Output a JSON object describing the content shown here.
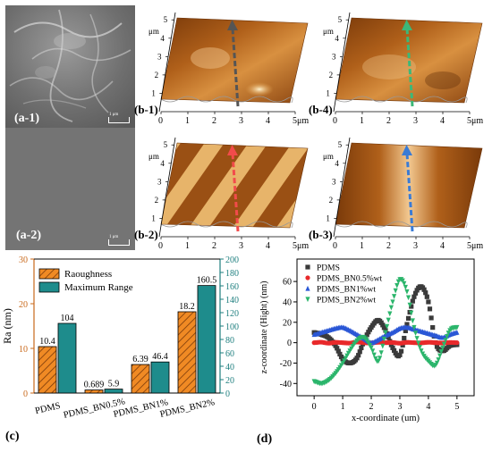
{
  "sem": {
    "a1": {
      "label": "(a-1)",
      "scale": "1 μm"
    },
    "a2": {
      "label": "(a-2)",
      "scale": "1 μm"
    }
  },
  "afm": {
    "unit": "μm",
    "x_ticks": [
      "0",
      "1",
      "2",
      "3",
      "4",
      "5μm"
    ],
    "y_ticks": [
      "1",
      "2",
      "3",
      "4",
      "5"
    ],
    "panels": [
      {
        "label": "(b-1)",
        "arrow_color": "#555555"
      },
      {
        "label": "(b-4)",
        "arrow_color": "#3cb878"
      },
      {
        "label": "(b-2)",
        "arrow_color": "#f24b4b"
      },
      {
        "label": "(b-3)",
        "arrow_color": "#3a7bd5"
      }
    ]
  },
  "panel_labels": {
    "c": "(c)",
    "d": "(d)"
  },
  "chart_data": [
    {
      "type": "bar",
      "categories": [
        "PDMS",
        "PDMS_BN0.5%",
        "PDMS_BN1%",
        "PDMS_BN2%"
      ],
      "series": [
        {
          "name": "Raoughness",
          "values": [
            10.4,
            0.689,
            6.39,
            18.2
          ],
          "labels": [
            "10.4",
            "0.689",
            "6.39",
            "18.2"
          ],
          "axis": "left"
        },
        {
          "name": "Maximum Range",
          "values": [
            104,
            5.9,
            46.4,
            160.5
          ],
          "labels": [
            "104",
            "5.9",
            "46.4",
            "160.5"
          ],
          "axis": "right"
        }
      ],
      "ylabel": "Ra (nm)",
      "ylim": [
        0,
        30
      ],
      "y_ticks": [
        "0",
        "10",
        "20",
        "30"
      ],
      "y2lim": [
        0,
        200
      ],
      "y2_ticks": [
        "0",
        "20",
        "40",
        "60",
        "80",
        "100",
        "120",
        "140",
        "160",
        "180",
        "200"
      ],
      "legend": "top-left",
      "colors": {
        "bar1": "#f08a24",
        "bar2": "#1e8c8c",
        "left_axis": "#c8681a",
        "right_axis": "#1e7f7f"
      }
    },
    {
      "type": "scatter",
      "xlabel": "x-coordinate (um)",
      "ylabel": "z-coordinate (Hight) (nm)",
      "xlim": [
        -0.6,
        5.6
      ],
      "ylim": [
        -52,
        82
      ],
      "x_ticks": [
        "0",
        "1",
        "2",
        "3",
        "4",
        "5"
      ],
      "y_ticks": [
        "-40",
        "-20",
        "0",
        "20",
        "40",
        "60"
      ],
      "legend": "top-left",
      "series": [
        {
          "name": "PDMS",
          "color": "#3a3a3a",
          "marker": "square",
          "x": [
            0,
            0.25,
            0.5,
            0.75,
            1,
            1.25,
            1.5,
            1.75,
            2,
            2.25,
            2.5,
            2.75,
            3,
            3.25,
            3.5,
            3.75,
            4,
            4.25,
            4.5,
            4.75,
            5
          ],
          "y": [
            10,
            8,
            5,
            -3,
            -16,
            -20,
            -15,
            2,
            15,
            22,
            12,
            -5,
            -12,
            18,
            45,
            55,
            40,
            0,
            -8,
            -3,
            -2
          ]
        },
        {
          "name": "PDMS_BN0.5%wt",
          "color": "#e8292b",
          "marker": "circle",
          "x": [
            0,
            0.25,
            0.5,
            0.75,
            1,
            1.25,
            1.5,
            1.75,
            2,
            2.25,
            2.5,
            2.75,
            3,
            3.25,
            3.5,
            3.75,
            4,
            4.25,
            4.5,
            4.75,
            5
          ],
          "y": [
            0,
            0.5,
            -0.5,
            0.3,
            0,
            -0.4,
            0.6,
            0,
            -0.3,
            0.4,
            0,
            0.2,
            -0.5,
            0.3,
            0,
            -0.2,
            0.4,
            0,
            -0.3,
            0.2,
            0
          ]
        },
        {
          "name": "PDMS_BN1%wt",
          "color": "#2a57d6",
          "marker": "triangle-up",
          "x": [
            0,
            0.25,
            0.5,
            0.75,
            1,
            1.25,
            1.5,
            1.75,
            2,
            2.25,
            2.5,
            2.75,
            3,
            3.25,
            3.5,
            3.75,
            4,
            4.25,
            4.5,
            4.75,
            5
          ],
          "y": [
            8,
            10,
            12,
            14,
            15,
            12,
            8,
            4,
            0,
            3,
            7,
            10,
            14,
            15,
            13,
            11,
            9,
            7,
            5,
            8,
            10
          ]
        },
        {
          "name": "PDMS_BN2%wt",
          "color": "#2bb56b",
          "marker": "triangle-down",
          "x": [
            0,
            0.25,
            0.5,
            0.75,
            1,
            1.25,
            1.5,
            1.75,
            2,
            2.25,
            2.5,
            2.75,
            3,
            3.25,
            3.5,
            3.75,
            4,
            4.25,
            4.5,
            4.75,
            5
          ],
          "y": [
            -38,
            -40,
            -37,
            -30,
            -20,
            -8,
            2,
            5,
            -5,
            -18,
            10,
            40,
            62,
            50,
            15,
            -8,
            -18,
            -22,
            -5,
            12,
            15
          ]
        }
      ]
    }
  ]
}
